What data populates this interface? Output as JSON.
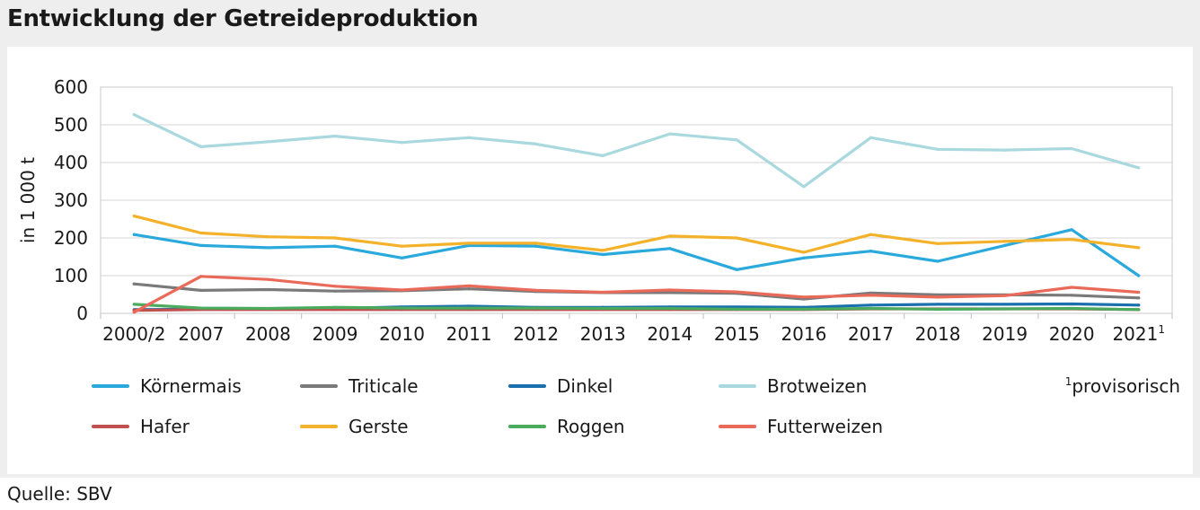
{
  "title": "Entwicklung der Getreideproduktion",
  "source": "Quelle: SBV",
  "footnote": {
    "marker": "1",
    "text": "provisorisch"
  },
  "chart_data": {
    "type": "line",
    "title": "Entwicklung der Getreideproduktion",
    "ylabel": "in 1 000 t",
    "xlabel": "",
    "ylim": [
      0,
      600
    ],
    "yticks": [
      0,
      100,
      200,
      300,
      400,
      500,
      600
    ],
    "grid": "horizontal",
    "legend_position": "bottom",
    "categories": [
      "2000/2",
      "2007",
      "2008",
      "2009",
      "2010",
      "2011",
      "2012",
      "2013",
      "2014",
      "2015",
      "2016",
      "2017",
      "2018",
      "2019",
      "2020",
      "2021"
    ],
    "category_superscripts": {
      "2021": "1"
    },
    "series": [
      {
        "name": "Körnermais",
        "color": "#2aa9dc",
        "values": [
          209,
          180,
          174,
          178,
          147,
          180,
          178,
          156,
          172,
          116,
          147,
          165,
          138,
          180,
          222,
          100
        ]
      },
      {
        "name": "Triticale",
        "color": "#7a7a7a",
        "values": [
          78,
          61,
          63,
          59,
          60,
          65,
          58,
          55,
          55,
          53,
          38,
          54,
          49,
          49,
          48,
          41
        ]
      },
      {
        "name": "Dinkel",
        "color": "#1a6fad",
        "values": [
          10,
          11,
          12,
          13,
          17,
          19,
          16,
          16,
          17,
          17,
          16,
          22,
          24,
          24,
          25,
          22
        ]
      },
      {
        "name": "Brotweizen",
        "color": "#a9d9de",
        "values": [
          527,
          442,
          455,
          470,
          453,
          466,
          449,
          418,
          476,
          460,
          336,
          466,
          435,
          433,
          437,
          386
        ]
      },
      {
        "name": "Hafer",
        "color": "#c0504d",
        "values": [
          8,
          10,
          10,
          10,
          10,
          10,
          10,
          10,
          10,
          10,
          10,
          12,
          12,
          12,
          12,
          10
        ]
      },
      {
        "name": "Gerste",
        "color": "#f4b12a",
        "values": [
          258,
          213,
          203,
          200,
          178,
          186,
          186,
          167,
          205,
          200,
          162,
          209,
          185,
          191,
          196,
          174
        ]
      },
      {
        "name": "Roggen",
        "color": "#4aab5e",
        "values": [
          24,
          14,
          13,
          16,
          14,
          14,
          14,
          13,
          13,
          11,
          11,
          13,
          11,
          12,
          13,
          10
        ]
      },
      {
        "name": "Futterweizen",
        "color": "#ea6a5a",
        "values": [
          3,
          98,
          90,
          72,
          62,
          73,
          61,
          56,
          62,
          57,
          43,
          48,
          43,
          47,
          69,
          56
        ]
      }
    ]
  }
}
